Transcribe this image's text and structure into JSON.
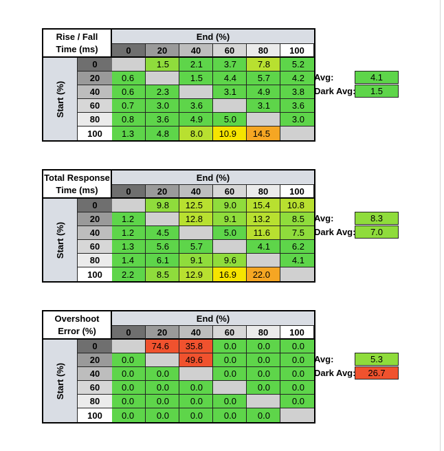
{
  "colors": {
    "green": "#5ed54a",
    "lightgreen": "#8fdc3c",
    "yellowgreen": "#b8e030",
    "yellow": "#f5e400",
    "orange": "#f5a623",
    "red": "#f0522e",
    "blank": "#d0d0d0"
  },
  "tables": [
    {
      "title_line1": "Rise / Fall",
      "title_line2": "Time (ms)",
      "end_label": "End (%)",
      "start_label": "Start (%)",
      "columns": [
        "0",
        "20",
        "40",
        "60",
        "80",
        "100"
      ],
      "rows": [
        {
          "label": "0",
          "cells": [
            {
              "v": "",
              "c": "blank"
            },
            {
              "v": "1.5",
              "c": "lightgreen"
            },
            {
              "v": "2.1",
              "c": "green"
            },
            {
              "v": "3.7",
              "c": "green"
            },
            {
              "v": "7.8",
              "c": "yellowgreen"
            },
            {
              "v": "5.2",
              "c": "green"
            }
          ]
        },
        {
          "label": "20",
          "cells": [
            {
              "v": "0.6",
              "c": "green"
            },
            {
              "v": "",
              "c": "blank"
            },
            {
              "v": "1.5",
              "c": "green"
            },
            {
              "v": "4.4",
              "c": "green"
            },
            {
              "v": "5.7",
              "c": "green"
            },
            {
              "v": "4.2",
              "c": "green"
            }
          ]
        },
        {
          "label": "40",
          "cells": [
            {
              "v": "0.6",
              "c": "green"
            },
            {
              "v": "2.3",
              "c": "green"
            },
            {
              "v": "",
              "c": "blank"
            },
            {
              "v": "3.1",
              "c": "green"
            },
            {
              "v": "4.9",
              "c": "green"
            },
            {
              "v": "3.8",
              "c": "green"
            }
          ]
        },
        {
          "label": "60",
          "cells": [
            {
              "v": "0.7",
              "c": "green"
            },
            {
              "v": "3.0",
              "c": "green"
            },
            {
              "v": "3.6",
              "c": "green"
            },
            {
              "v": "",
              "c": "blank"
            },
            {
              "v": "3.1",
              "c": "green"
            },
            {
              "v": "3.6",
              "c": "green"
            }
          ]
        },
        {
          "label": "80",
          "cells": [
            {
              "v": "0.8",
              "c": "green"
            },
            {
              "v": "3.6",
              "c": "green"
            },
            {
              "v": "4.9",
              "c": "green"
            },
            {
              "v": "5.0",
              "c": "green"
            },
            {
              "v": "",
              "c": "blank"
            },
            {
              "v": "3.0",
              "c": "green"
            }
          ]
        },
        {
          "label": "100",
          "cells": [
            {
              "v": "1.3",
              "c": "green"
            },
            {
              "v": "4.8",
              "c": "green"
            },
            {
              "v": "8.0",
              "c": "yellowgreen"
            },
            {
              "v": "10.9",
              "c": "yellow"
            },
            {
              "v": "14.5",
              "c": "orange"
            },
            {
              "v": "",
              "c": "blank"
            }
          ]
        }
      ],
      "avg_label": "Avg:",
      "avg_value": "4.1",
      "avg_color": "green",
      "dark_avg_label": "Dark Avg:",
      "dark_avg_value": "1.5",
      "dark_avg_color": "green"
    },
    {
      "title_line1": "Total Response",
      "title_line2": "Time (ms)",
      "end_label": "End (%)",
      "start_label": "Start (%)",
      "columns": [
        "0",
        "20",
        "40",
        "60",
        "80",
        "100"
      ],
      "rows": [
        {
          "label": "0",
          "cells": [
            {
              "v": "",
              "c": "blank"
            },
            {
              "v": "9.8",
              "c": "lightgreen"
            },
            {
              "v": "12.5",
              "c": "yellowgreen"
            },
            {
              "v": "9.0",
              "c": "lightgreen"
            },
            {
              "v": "15.4",
              "c": "yellowgreen"
            },
            {
              "v": "10.8",
              "c": "yellowgreen"
            }
          ]
        },
        {
          "label": "20",
          "cells": [
            {
              "v": "1.2",
              "c": "green"
            },
            {
              "v": "",
              "c": "blank"
            },
            {
              "v": "12.8",
              "c": "yellowgreen"
            },
            {
              "v": "9.1",
              "c": "lightgreen"
            },
            {
              "v": "13.2",
              "c": "yellowgreen"
            },
            {
              "v": "8.5",
              "c": "lightgreen"
            }
          ]
        },
        {
          "label": "40",
          "cells": [
            {
              "v": "1.2",
              "c": "green"
            },
            {
              "v": "4.5",
              "c": "green"
            },
            {
              "v": "",
              "c": "blank"
            },
            {
              "v": "5.0",
              "c": "green"
            },
            {
              "v": "11.6",
              "c": "yellowgreen"
            },
            {
              "v": "7.5",
              "c": "lightgreen"
            }
          ]
        },
        {
          "label": "60",
          "cells": [
            {
              "v": "1.3",
              "c": "green"
            },
            {
              "v": "5.6",
              "c": "green"
            },
            {
              "v": "5.7",
              "c": "green"
            },
            {
              "v": "",
              "c": "blank"
            },
            {
              "v": "4.1",
              "c": "green"
            },
            {
              "v": "6.2",
              "c": "green"
            }
          ]
        },
        {
          "label": "80",
          "cells": [
            {
              "v": "1.4",
              "c": "green"
            },
            {
              "v": "6.1",
              "c": "green"
            },
            {
              "v": "9.1",
              "c": "lightgreen"
            },
            {
              "v": "9.6",
              "c": "lightgreen"
            },
            {
              "v": "",
              "c": "blank"
            },
            {
              "v": "4.1",
              "c": "green"
            }
          ]
        },
        {
          "label": "100",
          "cells": [
            {
              "v": "2.2",
              "c": "green"
            },
            {
              "v": "8.5",
              "c": "lightgreen"
            },
            {
              "v": "12.9",
              "c": "yellowgreen"
            },
            {
              "v": "16.9",
              "c": "yellow"
            },
            {
              "v": "22.0",
              "c": "orange"
            },
            {
              "v": "",
              "c": "blank"
            }
          ]
        }
      ],
      "avg_label": "Avg:",
      "avg_value": "8.3",
      "avg_color": "lightgreen",
      "dark_avg_label": "Dark Avg:",
      "dark_avg_value": "7.0",
      "dark_avg_color": "lightgreen"
    },
    {
      "title_line1": "Overshoot",
      "title_line2": "Error (%)",
      "end_label": "End (%)",
      "start_label": "Start (%)",
      "columns": [
        "0",
        "20",
        "40",
        "60",
        "80",
        "100"
      ],
      "rows": [
        {
          "label": "0",
          "cells": [
            {
              "v": "",
              "c": "blank"
            },
            {
              "v": "74.6",
              "c": "red"
            },
            {
              "v": "35.8",
              "c": "red"
            },
            {
              "v": "0.0",
              "c": "green"
            },
            {
              "v": "0.0",
              "c": "green"
            },
            {
              "v": "0.0",
              "c": "green"
            }
          ]
        },
        {
          "label": "20",
          "cells": [
            {
              "v": "0.0",
              "c": "green"
            },
            {
              "v": "",
              "c": "blank"
            },
            {
              "v": "49.6",
              "c": "red"
            },
            {
              "v": "0.0",
              "c": "green"
            },
            {
              "v": "0.0",
              "c": "green"
            },
            {
              "v": "0.0",
              "c": "green"
            }
          ]
        },
        {
          "label": "40",
          "cells": [
            {
              "v": "0.0",
              "c": "green"
            },
            {
              "v": "0.0",
              "c": "green"
            },
            {
              "v": "",
              "c": "blank"
            },
            {
              "v": "0.0",
              "c": "green"
            },
            {
              "v": "0.0",
              "c": "green"
            },
            {
              "v": "0.0",
              "c": "green"
            }
          ]
        },
        {
          "label": "60",
          "cells": [
            {
              "v": "0.0",
              "c": "green"
            },
            {
              "v": "0.0",
              "c": "green"
            },
            {
              "v": "0.0",
              "c": "green"
            },
            {
              "v": "",
              "c": "blank"
            },
            {
              "v": "0.0",
              "c": "green"
            },
            {
              "v": "0.0",
              "c": "green"
            }
          ]
        },
        {
          "label": "80",
          "cells": [
            {
              "v": "0.0",
              "c": "green"
            },
            {
              "v": "0.0",
              "c": "green"
            },
            {
              "v": "0.0",
              "c": "green"
            },
            {
              "v": "0.0",
              "c": "green"
            },
            {
              "v": "",
              "c": "blank"
            },
            {
              "v": "0.0",
              "c": "green"
            }
          ]
        },
        {
          "label": "100",
          "cells": [
            {
              "v": "0.0",
              "c": "green"
            },
            {
              "v": "0.0",
              "c": "green"
            },
            {
              "v": "0.0",
              "c": "green"
            },
            {
              "v": "0.0",
              "c": "green"
            },
            {
              "v": "0.0",
              "c": "green"
            },
            {
              "v": "",
              "c": "blank"
            }
          ]
        }
      ],
      "avg_label": "Avg:",
      "avg_value": "5.3",
      "avg_color": "lightgreen",
      "dark_avg_label": "Dark Avg:",
      "dark_avg_value": "26.7",
      "dark_avg_color": "red"
    }
  ]
}
